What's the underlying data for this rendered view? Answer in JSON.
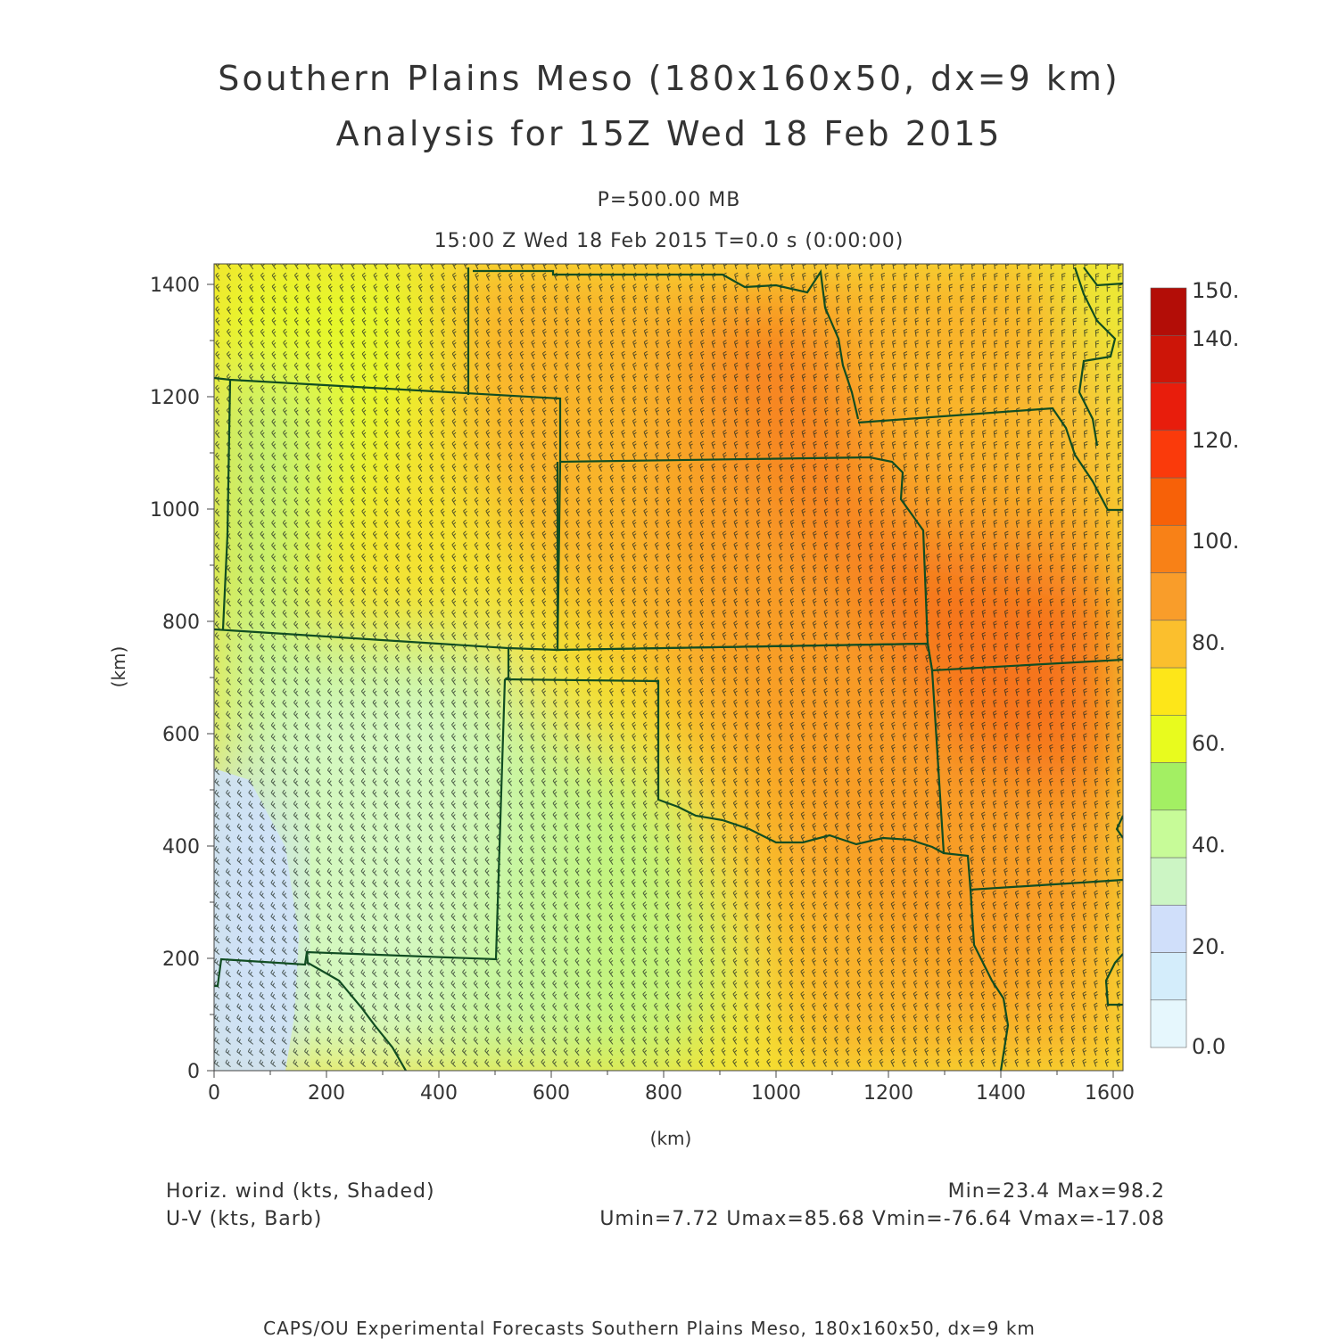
{
  "header": {
    "title_line1": "Southern Plains Meso (180x160x50, dx=9 km)",
    "title_line2": "Analysis for 15Z Wed 18 Feb 2015",
    "level": "P=500.00 MB",
    "time": "15:00 Z Wed 18 Feb 2015    T=0.0 s (0:00:00)"
  },
  "axes": {
    "xlabel": "(km)",
    "ylabel": "(km)",
    "x_ticks": [
      "0",
      "200",
      "400",
      "600",
      "800",
      "1000",
      "1200",
      "1400",
      "1600"
    ],
    "y_ticks": [
      "0",
      "200",
      "400",
      "600",
      "800",
      "1000",
      "1200",
      "1400"
    ]
  },
  "colorbar": {
    "labels": [
      "0.0",
      "20.",
      "40.",
      "60.",
      "80.",
      "100.",
      "120.",
      "140.",
      "150."
    ],
    "colors": [
      "#e6f7fd",
      "#d4edfb",
      "#d0dffa",
      "#ccf5c4",
      "#c7fb98",
      "#a3ef63",
      "#e8fb1e",
      "#fde619",
      "#fbbf2d",
      "#f99d2a",
      "#f88117",
      "#f76108",
      "#fa3a0b",
      "#e81d0c",
      "#cd1508",
      "#b30d07"
    ]
  },
  "footer": {
    "field1": "Horiz. wind (kts, Shaded)",
    "field2": "U-V (kts, Barb)",
    "minmax": "Min=23.4 Max=98.2",
    "uv_stats": "Umin=7.72 Umax=85.68 Vmin=-76.64 Vmax=-17.08",
    "credit": "CAPS/OU Experimental Forecasts  Southern Plains Meso, 180x160x50, dx=9 km"
  },
  "map": {
    "domain_km": {
      "x": [
        0,
        1620
      ],
      "y": [
        0,
        1440
      ]
    },
    "field": "Horiz. wind speed (kts)",
    "speed_centers": [
      {
        "x_km": 1520,
        "y_km": 640,
        "speed": 98
      },
      {
        "x_km": 1020,
        "y_km": 1130,
        "speed": 96
      },
      {
        "x_km": 1300,
        "y_km": 880,
        "speed": 95
      },
      {
        "x_km": 40,
        "y_km": 180,
        "speed": 23
      }
    ]
  }
}
